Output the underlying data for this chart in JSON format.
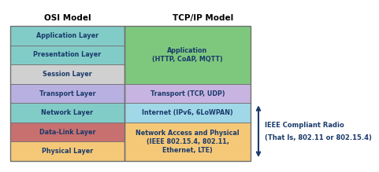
{
  "title_osi": "OSI Model",
  "title_tcp": "TCP/IP Model",
  "osi_layers": [
    {
      "label": "Application Layer",
      "color": "#82ccc8"
    },
    {
      "label": "Presentation Layer",
      "color": "#82ccc8"
    },
    {
      "label": "Session Layer",
      "color": "#d0d0d0"
    },
    {
      "label": "Transport Layer",
      "color": "#b8b0e0"
    },
    {
      "label": "Network Layer",
      "color": "#82ccc8"
    },
    {
      "label": "Data-Link Layer",
      "color": "#c87070"
    },
    {
      "label": "Physical Layer",
      "color": "#f5c878"
    }
  ],
  "tcp_layers": [
    {
      "label": "Application\n(HTTP, CoAP, MQTT)",
      "color": "#7ec87e",
      "span": 3
    },
    {
      "label": "Transport (TCP, UDP)",
      "color": "#c8b4e0",
      "span": 1
    },
    {
      "label": "Internet (IPv6, 6LoWPAN)",
      "color": "#a0d8e8",
      "span": 1
    },
    {
      "label": "Network Access and Physical\n(IEEE 802.15.4, 802.11,\nEthernet, LTE)",
      "color": "#f5c878",
      "span": 2
    }
  ],
  "arrow_text_1": "IEEE Compliant Radio",
  "arrow_text_2": "(That Is, 802.11 or 802.15.4)",
  "border_color": "#707070",
  "text_color": "#1a3a6b",
  "bg_color": "#ffffff"
}
